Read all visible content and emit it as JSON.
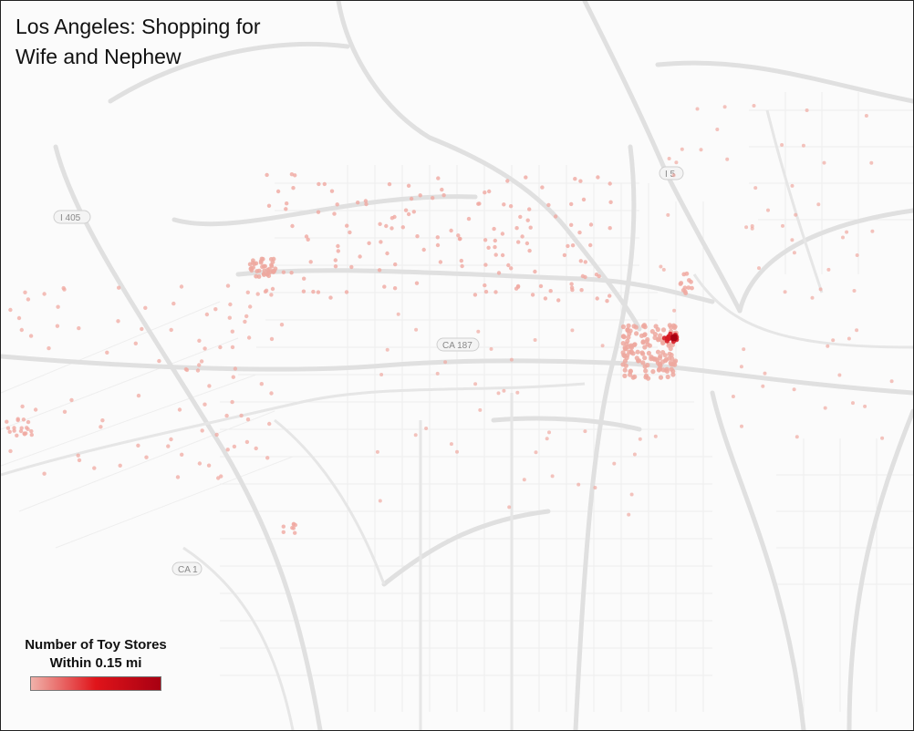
{
  "title": {
    "line1": "Los Angeles: Shopping for",
    "line2": "Wife and Nephew"
  },
  "legend": {
    "line1": "Number of Toy Stores",
    "line2": "Within 0.15 mi",
    "gradient_colors": [
      "#f0b2aa",
      "#e0141a",
      "#a80012"
    ]
  },
  "map_labels": {
    "i405": "I 405",
    "i5": "I 5",
    "ca187": "CA 187",
    "ca1": "CA 1"
  },
  "colors": {
    "road": "#e0e0e0",
    "street": "#eeeeee",
    "point_light": "#f0a9a1",
    "point_dark": "#c8101a"
  }
}
